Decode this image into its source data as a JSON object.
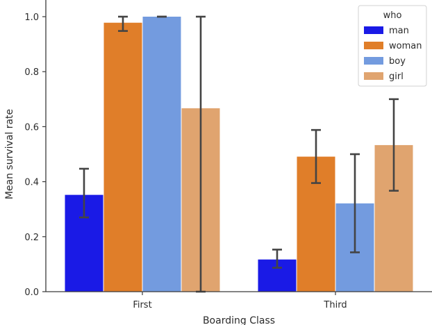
{
  "chart_data": {
    "type": "bar",
    "xlabel": "Boarding Class",
    "ylabel": "Mean survival rate",
    "categories": [
      "First",
      "Third"
    ],
    "ylim": [
      0,
      1.05
    ],
    "yticks": [
      "0.0",
      "0.2",
      "0.4",
      "0.6",
      "0.8",
      "1.0"
    ],
    "grid": false,
    "legend": {
      "title": "who",
      "placement": "top-right"
    },
    "series": [
      {
        "name": "man",
        "color": "#1a1ae6",
        "values": [
          0.352,
          0.117
        ],
        "error_low": [
          0.27,
          0.087
        ],
        "error_high": [
          0.447,
          0.153
        ]
      },
      {
        "name": "woman",
        "color": "#e07e29",
        "values": [
          0.978,
          0.491
        ],
        "error_low": [
          0.948,
          0.395
        ],
        "error_high": [
          1.0,
          0.588
        ]
      },
      {
        "name": "boy",
        "color": "#739bdf",
        "values": [
          1.0,
          0.321
        ],
        "error_low": [
          1.0,
          0.143
        ],
        "error_high": [
          1.0,
          0.5
        ]
      },
      {
        "name": "girl",
        "color": "#e0a46f",
        "values": [
          0.667,
          0.533
        ],
        "error_low": [
          0.0,
          0.367
        ],
        "error_high": [
          1.0,
          0.7
        ]
      }
    ]
  }
}
